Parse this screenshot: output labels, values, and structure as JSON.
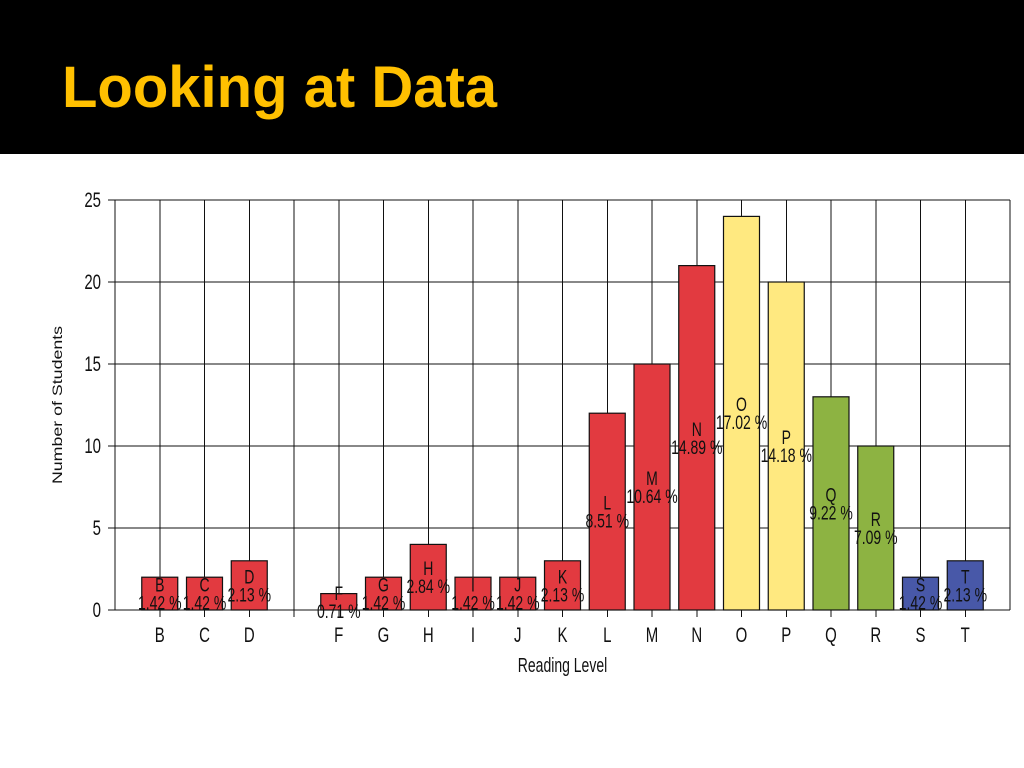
{
  "theme": {
    "header_background": "#000000",
    "title_color": "#FFC000",
    "page_background": "#FFFFFF"
  },
  "chart_data": {
    "type": "bar",
    "title": "Looking at Data",
    "xlabel": "Reading Level",
    "ylabel": "Number of Students",
    "ylim": [
      0,
      25
    ],
    "yticks": [
      0,
      5,
      10,
      15,
      20,
      25
    ],
    "grid": true,
    "categories": [
      "B",
      "C",
      "D",
      "",
      "F",
      "G",
      "H",
      "I",
      "J",
      "K",
      "L",
      "M",
      "N",
      "O",
      "P",
      "Q",
      "R",
      "S",
      "T"
    ],
    "values": [
      2,
      2,
      3,
      null,
      1,
      2,
      4,
      2,
      2,
      3,
      12,
      15,
      21,
      24,
      20,
      13,
      10,
      2,
      3
    ],
    "data_labels": [
      "1.42 %",
      "1.42 %",
      "2.13 %",
      "",
      "0.71 %",
      "1.42 %",
      "2.84 %",
      "1.42 %",
      "1.42 %",
      "2.13 %",
      "8.51 %",
      "10.64 %",
      "14.89 %",
      "17.02 %",
      "14.18 %",
      "9.22 %",
      "7.09 %",
      "1.42 %",
      "2.13 %"
    ],
    "colors": [
      "#E23A40",
      "#E23A40",
      "#E23A40",
      null,
      "#E23A40",
      "#E23A40",
      "#E23A40",
      "#E23A40",
      "#E23A40",
      "#E23A40",
      "#E23A40",
      "#E23A40",
      "#E23A40",
      "#FFE980",
      "#FFE980",
      "#8DB342",
      "#8DB342",
      "#4858A8",
      "#4858A8"
    ]
  }
}
